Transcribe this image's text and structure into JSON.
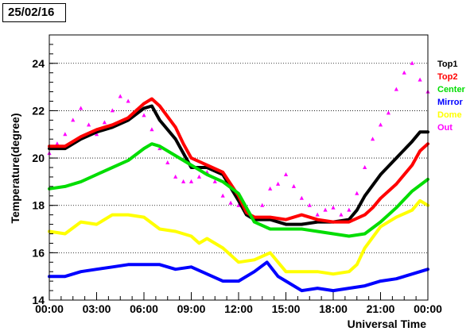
{
  "title": "25/02/16",
  "chart_data": {
    "type": "line",
    "xlabel": "Universal Time",
    "ylabel": "Temperature(degree)",
    "xlim": [
      0,
      24
    ],
    "ylim": [
      14,
      25.2
    ],
    "x_tick_labels": [
      "00:00",
      "03:00",
      "06:00",
      "09:00",
      "12:00",
      "15:00",
      "18:00",
      "21:00",
      "00:00"
    ],
    "y_tick_labels": [
      "14",
      "16",
      "18",
      "20",
      "22",
      "24"
    ],
    "y_ticks": [
      14,
      16,
      18,
      20,
      22,
      24
    ],
    "grid": "horizontal dotted",
    "legend_position": "right",
    "series": [
      {
        "name": "Top1",
        "color": "#000000",
        "style": "line",
        "x": [
          0,
          1,
          2,
          3,
          4,
          5,
          6,
          6.5,
          7,
          8,
          8.5,
          9,
          10,
          11,
          12,
          12.5,
          13,
          14,
          15,
          16,
          17,
          18,
          19,
          19.5,
          20,
          21,
          22,
          23,
          23.5,
          24
        ],
        "y": [
          20.4,
          20.4,
          20.8,
          21.1,
          21.3,
          21.6,
          22.1,
          22.2,
          21.6,
          20.8,
          20.2,
          19.6,
          19.6,
          19.3,
          18.2,
          17.6,
          17.4,
          17.4,
          17.2,
          17.2,
          17.3,
          17.3,
          17.4,
          17.8,
          18.4,
          19.3,
          20.0,
          20.7,
          21.1,
          21.1
        ]
      },
      {
        "name": "Top2",
        "color": "#ff0000",
        "style": "line",
        "x": [
          0,
          1,
          2,
          3,
          4,
          5,
          6,
          6.5,
          7,
          8,
          8.5,
          9,
          10,
          11,
          12,
          12.5,
          13,
          14,
          15,
          16,
          17,
          18,
          19,
          20,
          20.5,
          21,
          22,
          23,
          23.5,
          24
        ],
        "y": [
          20.5,
          20.5,
          20.9,
          21.2,
          21.4,
          21.7,
          22.3,
          22.5,
          22.2,
          21.3,
          20.6,
          20.0,
          19.7,
          19.4,
          18.4,
          17.7,
          17.5,
          17.5,
          17.4,
          17.6,
          17.4,
          17.3,
          17.3,
          17.6,
          17.9,
          18.3,
          18.9,
          19.7,
          20.3,
          20.6
        ]
      },
      {
        "name": "Center",
        "color": "#00dd00",
        "style": "line",
        "x": [
          0,
          1,
          2,
          3,
          4,
          5,
          6,
          6.5,
          7,
          8,
          9,
          10,
          11,
          12,
          12.5,
          13,
          14,
          15,
          16,
          17,
          18,
          19,
          20,
          21,
          22,
          23,
          24
        ],
        "y": [
          18.7,
          18.8,
          19.0,
          19.3,
          19.6,
          19.9,
          20.4,
          20.6,
          20.5,
          20.1,
          19.7,
          19.3,
          19.0,
          18.5,
          17.9,
          17.3,
          17.0,
          17.0,
          17.0,
          16.9,
          16.8,
          16.7,
          16.8,
          17.3,
          17.9,
          18.6,
          19.1
        ]
      },
      {
        "name": "Mirror",
        "color": "#0000ff",
        "style": "line",
        "x": [
          0,
          1,
          2,
          3,
          4,
          5,
          6,
          7,
          8,
          9,
          10,
          11,
          12,
          13,
          13.8,
          14.5,
          15,
          16,
          17,
          18,
          19,
          20,
          21,
          22,
          23,
          24
        ],
        "y": [
          15.0,
          15.0,
          15.2,
          15.3,
          15.4,
          15.5,
          15.5,
          15.5,
          15.3,
          15.4,
          15.1,
          14.8,
          14.8,
          15.2,
          15.6,
          15.0,
          14.8,
          14.4,
          14.5,
          14.4,
          14.5,
          14.6,
          14.8,
          14.9,
          15.1,
          15.3
        ]
      },
      {
        "name": "Dome",
        "color": "#ffff00",
        "style": "line",
        "x": [
          0,
          1,
          2,
          3,
          4,
          5,
          6,
          7,
          8,
          9,
          9.5,
          10,
          11,
          12,
          13,
          14,
          14.5,
          15,
          16,
          17,
          18,
          19,
          19.5,
          20,
          21,
          22,
          23,
          23.5,
          24
        ],
        "y": [
          16.9,
          16.8,
          17.3,
          17.2,
          17.6,
          17.6,
          17.5,
          17.0,
          16.9,
          16.7,
          16.4,
          16.6,
          16.2,
          15.6,
          15.7,
          16.0,
          15.6,
          15.2,
          15.2,
          15.2,
          15.1,
          15.2,
          15.5,
          16.2,
          17.1,
          17.5,
          17.8,
          18.2,
          18.0
        ]
      },
      {
        "name": "Out",
        "color": "#ff00ff",
        "style": "scatter",
        "x": [
          0,
          0.5,
          1,
          1.5,
          2,
          2.5,
          3,
          3.5,
          4,
          4.5,
          5,
          5.5,
          6,
          6.5,
          7,
          7.5,
          8,
          8.5,
          9,
          9.5,
          10,
          10.5,
          11,
          11.5,
          12,
          12.5,
          13,
          13.5,
          14,
          14.5,
          15,
          15.5,
          16,
          16.5,
          17,
          17.5,
          18,
          18.5,
          19,
          19.5,
          20,
          20.5,
          21,
          21.5,
          22,
          22.5,
          23,
          23.5,
          24
        ],
        "y": [
          20.2,
          20.6,
          21.0,
          21.6,
          22.1,
          21.4,
          21.0,
          21.5,
          22.0,
          22.6,
          22.4,
          22.0,
          21.8,
          21.2,
          20.4,
          19.8,
          19.2,
          19.0,
          19.0,
          19.2,
          19.4,
          19.0,
          18.4,
          18.1,
          18.0,
          17.7,
          17.5,
          18.0,
          18.7,
          18.9,
          19.3,
          18.8,
          18.3,
          18.0,
          17.6,
          17.8,
          17.9,
          17.6,
          17.8,
          18.5,
          19.6,
          20.8,
          21.4,
          21.9,
          22.9,
          23.6,
          24.0,
          23.3,
          22.8
        ]
      }
    ]
  }
}
